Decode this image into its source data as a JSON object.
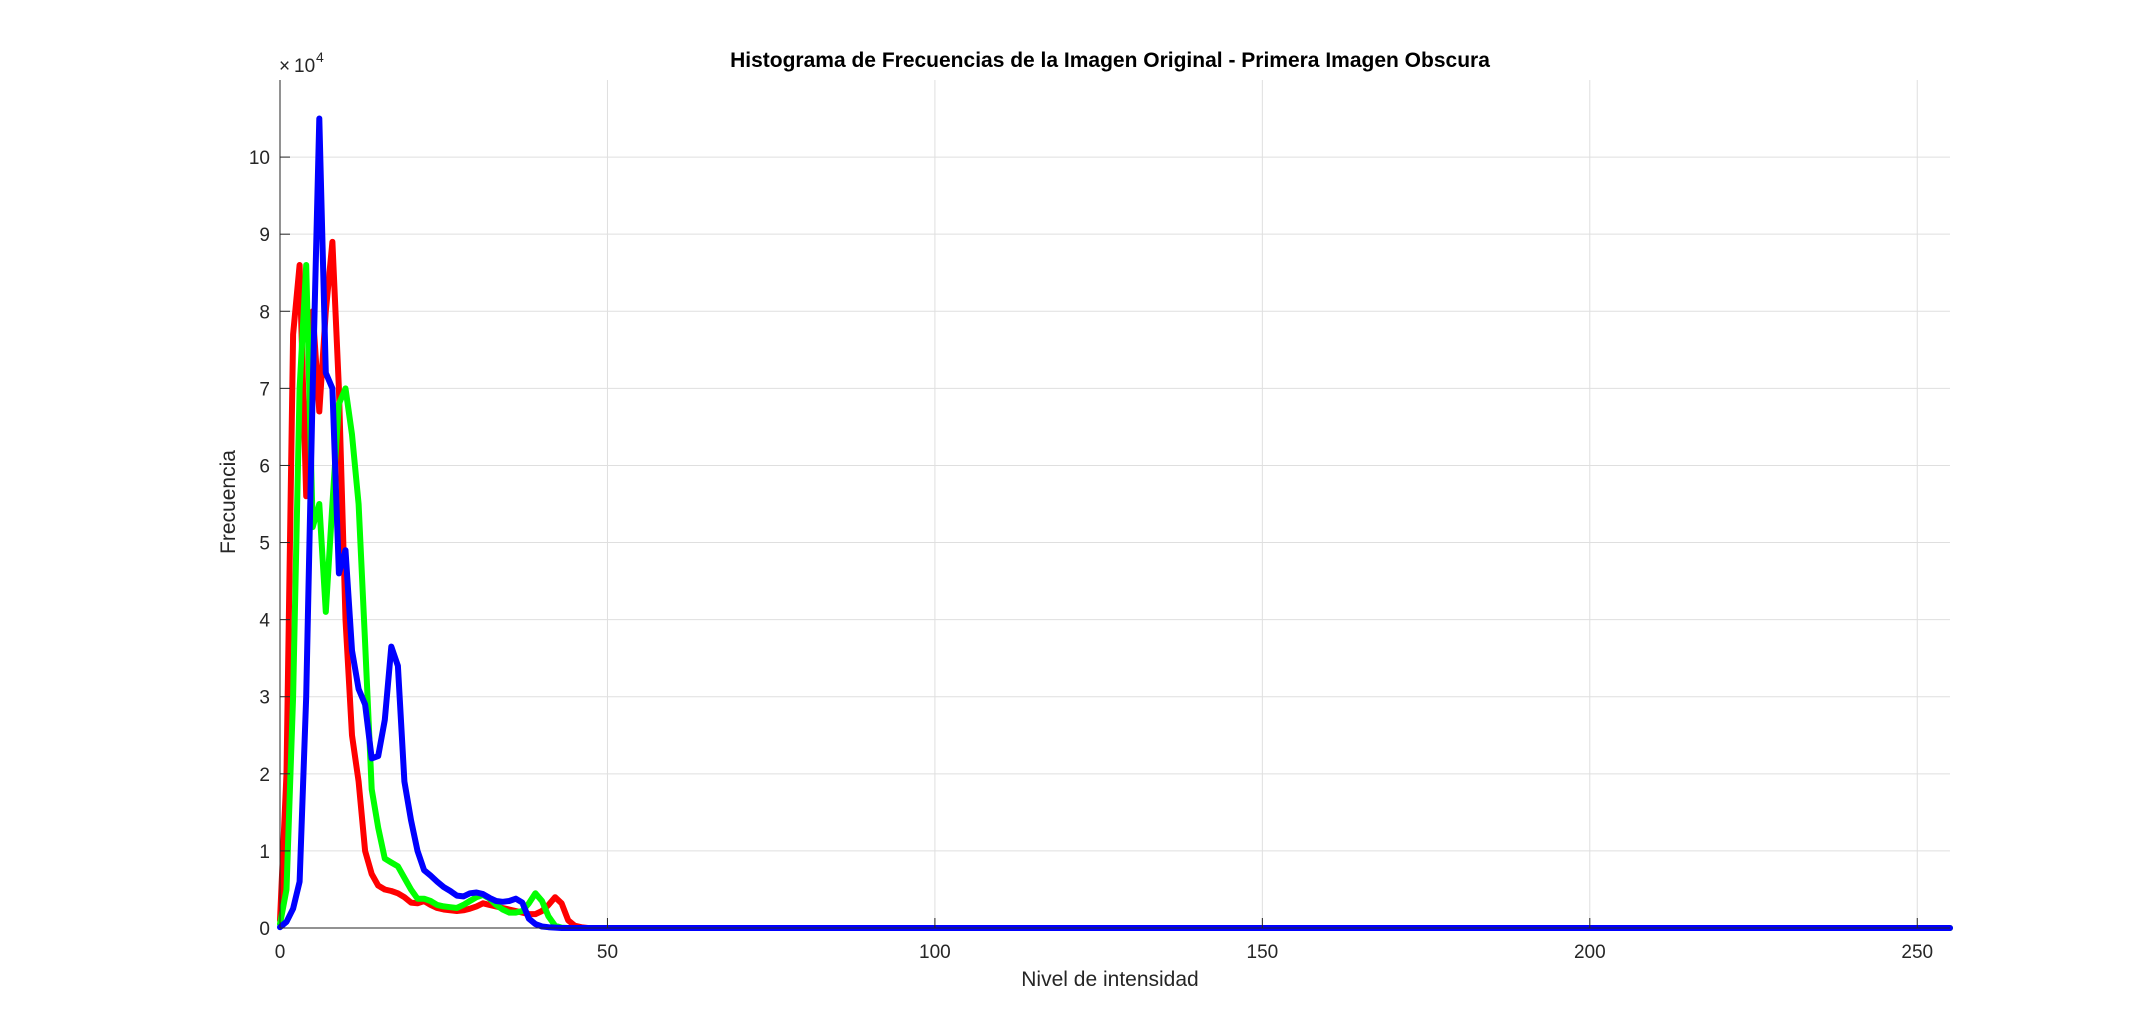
{
  "chart_data": {
    "type": "line",
    "title": "Histograma de Frecuencias de la Imagen Original - Primera Imagen Obscura",
    "xlabel": "Nivel de intensidad",
    "ylabel": "Frecuencia",
    "xlim": [
      0,
      255
    ],
    "ylim": [
      0,
      110000
    ],
    "xticks": [
      0,
      50,
      100,
      150,
      200,
      250
    ],
    "xtick_labels": [
      "0",
      "50",
      "100",
      "150",
      "200",
      "250"
    ],
    "yticks": [
      0,
      10000,
      20000,
      30000,
      40000,
      50000,
      60000,
      70000,
      80000,
      90000,
      100000
    ],
    "ytick_labels": [
      "0",
      "1",
      "2",
      "3",
      "4",
      "5",
      "6",
      "7",
      "8",
      "9",
      "10"
    ],
    "y_exponent_base": "10",
    "y_exponent_power": "4",
    "grid": true,
    "series": [
      {
        "color": "#ff0000",
        "points": [
          [
            0,
            1000
          ],
          [
            1,
            20000
          ],
          [
            2,
            77000
          ],
          [
            3,
            86000
          ],
          [
            4,
            56000
          ],
          [
            5,
            80000
          ],
          [
            6,
            67000
          ],
          [
            7,
            80000
          ],
          [
            8,
            89000
          ],
          [
            9,
            70000
          ],
          [
            10,
            40000
          ],
          [
            11,
            25000
          ],
          [
            12,
            19000
          ],
          [
            13,
            10000
          ],
          [
            14,
            7000
          ],
          [
            15,
            5500
          ],
          [
            16,
            5000
          ],
          [
            17,
            4800
          ],
          [
            18,
            4500
          ],
          [
            19,
            4000
          ],
          [
            20,
            3300
          ],
          [
            21,
            3200
          ],
          [
            22,
            3500
          ],
          [
            23,
            3000
          ],
          [
            24,
            2600
          ],
          [
            25,
            2400
          ],
          [
            26,
            2300
          ],
          [
            27,
            2200
          ],
          [
            28,
            2300
          ],
          [
            29,
            2500
          ],
          [
            30,
            2800
          ],
          [
            31,
            3200
          ],
          [
            32,
            3000
          ],
          [
            33,
            2800
          ],
          [
            34,
            2600
          ],
          [
            35,
            2400
          ],
          [
            36,
            2200
          ],
          [
            37,
            2000
          ],
          [
            38,
            1800
          ],
          [
            39,
            1800
          ],
          [
            40,
            2200
          ],
          [
            41,
            3000
          ],
          [
            42,
            4000
          ],
          [
            43,
            3200
          ],
          [
            44,
            1000
          ],
          [
            45,
            300
          ],
          [
            46,
            100
          ],
          [
            47,
            0
          ],
          [
            255,
            0
          ]
        ]
      },
      {
        "color": "#00ff00",
        "points": [
          [
            0,
            500
          ],
          [
            1,
            5000
          ],
          [
            2,
            30000
          ],
          [
            3,
            70000
          ],
          [
            4,
            86000
          ],
          [
            5,
            52000
          ],
          [
            6,
            55000
          ],
          [
            7,
            41000
          ],
          [
            8,
            55000
          ],
          [
            9,
            68000
          ],
          [
            10,
            70000
          ],
          [
            11,
            64000
          ],
          [
            12,
            55000
          ],
          [
            13,
            37000
          ],
          [
            14,
            18000
          ],
          [
            15,
            13000
          ],
          [
            16,
            9000
          ],
          [
            17,
            8500
          ],
          [
            18,
            8000
          ],
          [
            19,
            6500
          ],
          [
            20,
            5000
          ],
          [
            21,
            3800
          ],
          [
            22,
            3800
          ],
          [
            23,
            3500
          ],
          [
            24,
            3000
          ],
          [
            25,
            2800
          ],
          [
            26,
            2700
          ],
          [
            27,
            2600
          ],
          [
            28,
            3000
          ],
          [
            29,
            3500
          ],
          [
            30,
            4000
          ],
          [
            31,
            4300
          ],
          [
            32,
            3800
          ],
          [
            33,
            3000
          ],
          [
            34,
            2400
          ],
          [
            35,
            2000
          ],
          [
            36,
            2000
          ],
          [
            37,
            2200
          ],
          [
            38,
            3200
          ],
          [
            39,
            4500
          ],
          [
            40,
            3500
          ],
          [
            41,
            1500
          ],
          [
            42,
            300
          ],
          [
            43,
            50
          ],
          [
            44,
            0
          ],
          [
            255,
            0
          ]
        ]
      },
      {
        "color": "#0000ff",
        "points": [
          [
            0,
            100
          ],
          [
            1,
            800
          ],
          [
            2,
            2500
          ],
          [
            3,
            6000
          ],
          [
            4,
            30000
          ],
          [
            5,
            70000
          ],
          [
            6,
            105000
          ],
          [
            7,
            72000
          ],
          [
            8,
            70000
          ],
          [
            9,
            46000
          ],
          [
            10,
            49000
          ],
          [
            11,
            36000
          ],
          [
            12,
            31000
          ],
          [
            13,
            29000
          ],
          [
            14,
            22000
          ],
          [
            15,
            22300
          ],
          [
            16,
            27000
          ],
          [
            17,
            36500
          ],
          [
            18,
            34000
          ],
          [
            19,
            19000
          ],
          [
            20,
            14000
          ],
          [
            21,
            10000
          ],
          [
            22,
            7500
          ],
          [
            23,
            6800
          ],
          [
            24,
            6000
          ],
          [
            25,
            5300
          ],
          [
            26,
            4800
          ],
          [
            27,
            4200
          ],
          [
            28,
            4100
          ],
          [
            29,
            4500
          ],
          [
            30,
            4600
          ],
          [
            31,
            4400
          ],
          [
            32,
            3900
          ],
          [
            33,
            3500
          ],
          [
            34,
            3400
          ],
          [
            35,
            3500
          ],
          [
            36,
            3800
          ],
          [
            37,
            3300
          ],
          [
            38,
            1200
          ],
          [
            39,
            500
          ],
          [
            40,
            200
          ],
          [
            41,
            100
          ],
          [
            42,
            50
          ],
          [
            43,
            0
          ],
          [
            255,
            0
          ]
        ]
      }
    ]
  }
}
